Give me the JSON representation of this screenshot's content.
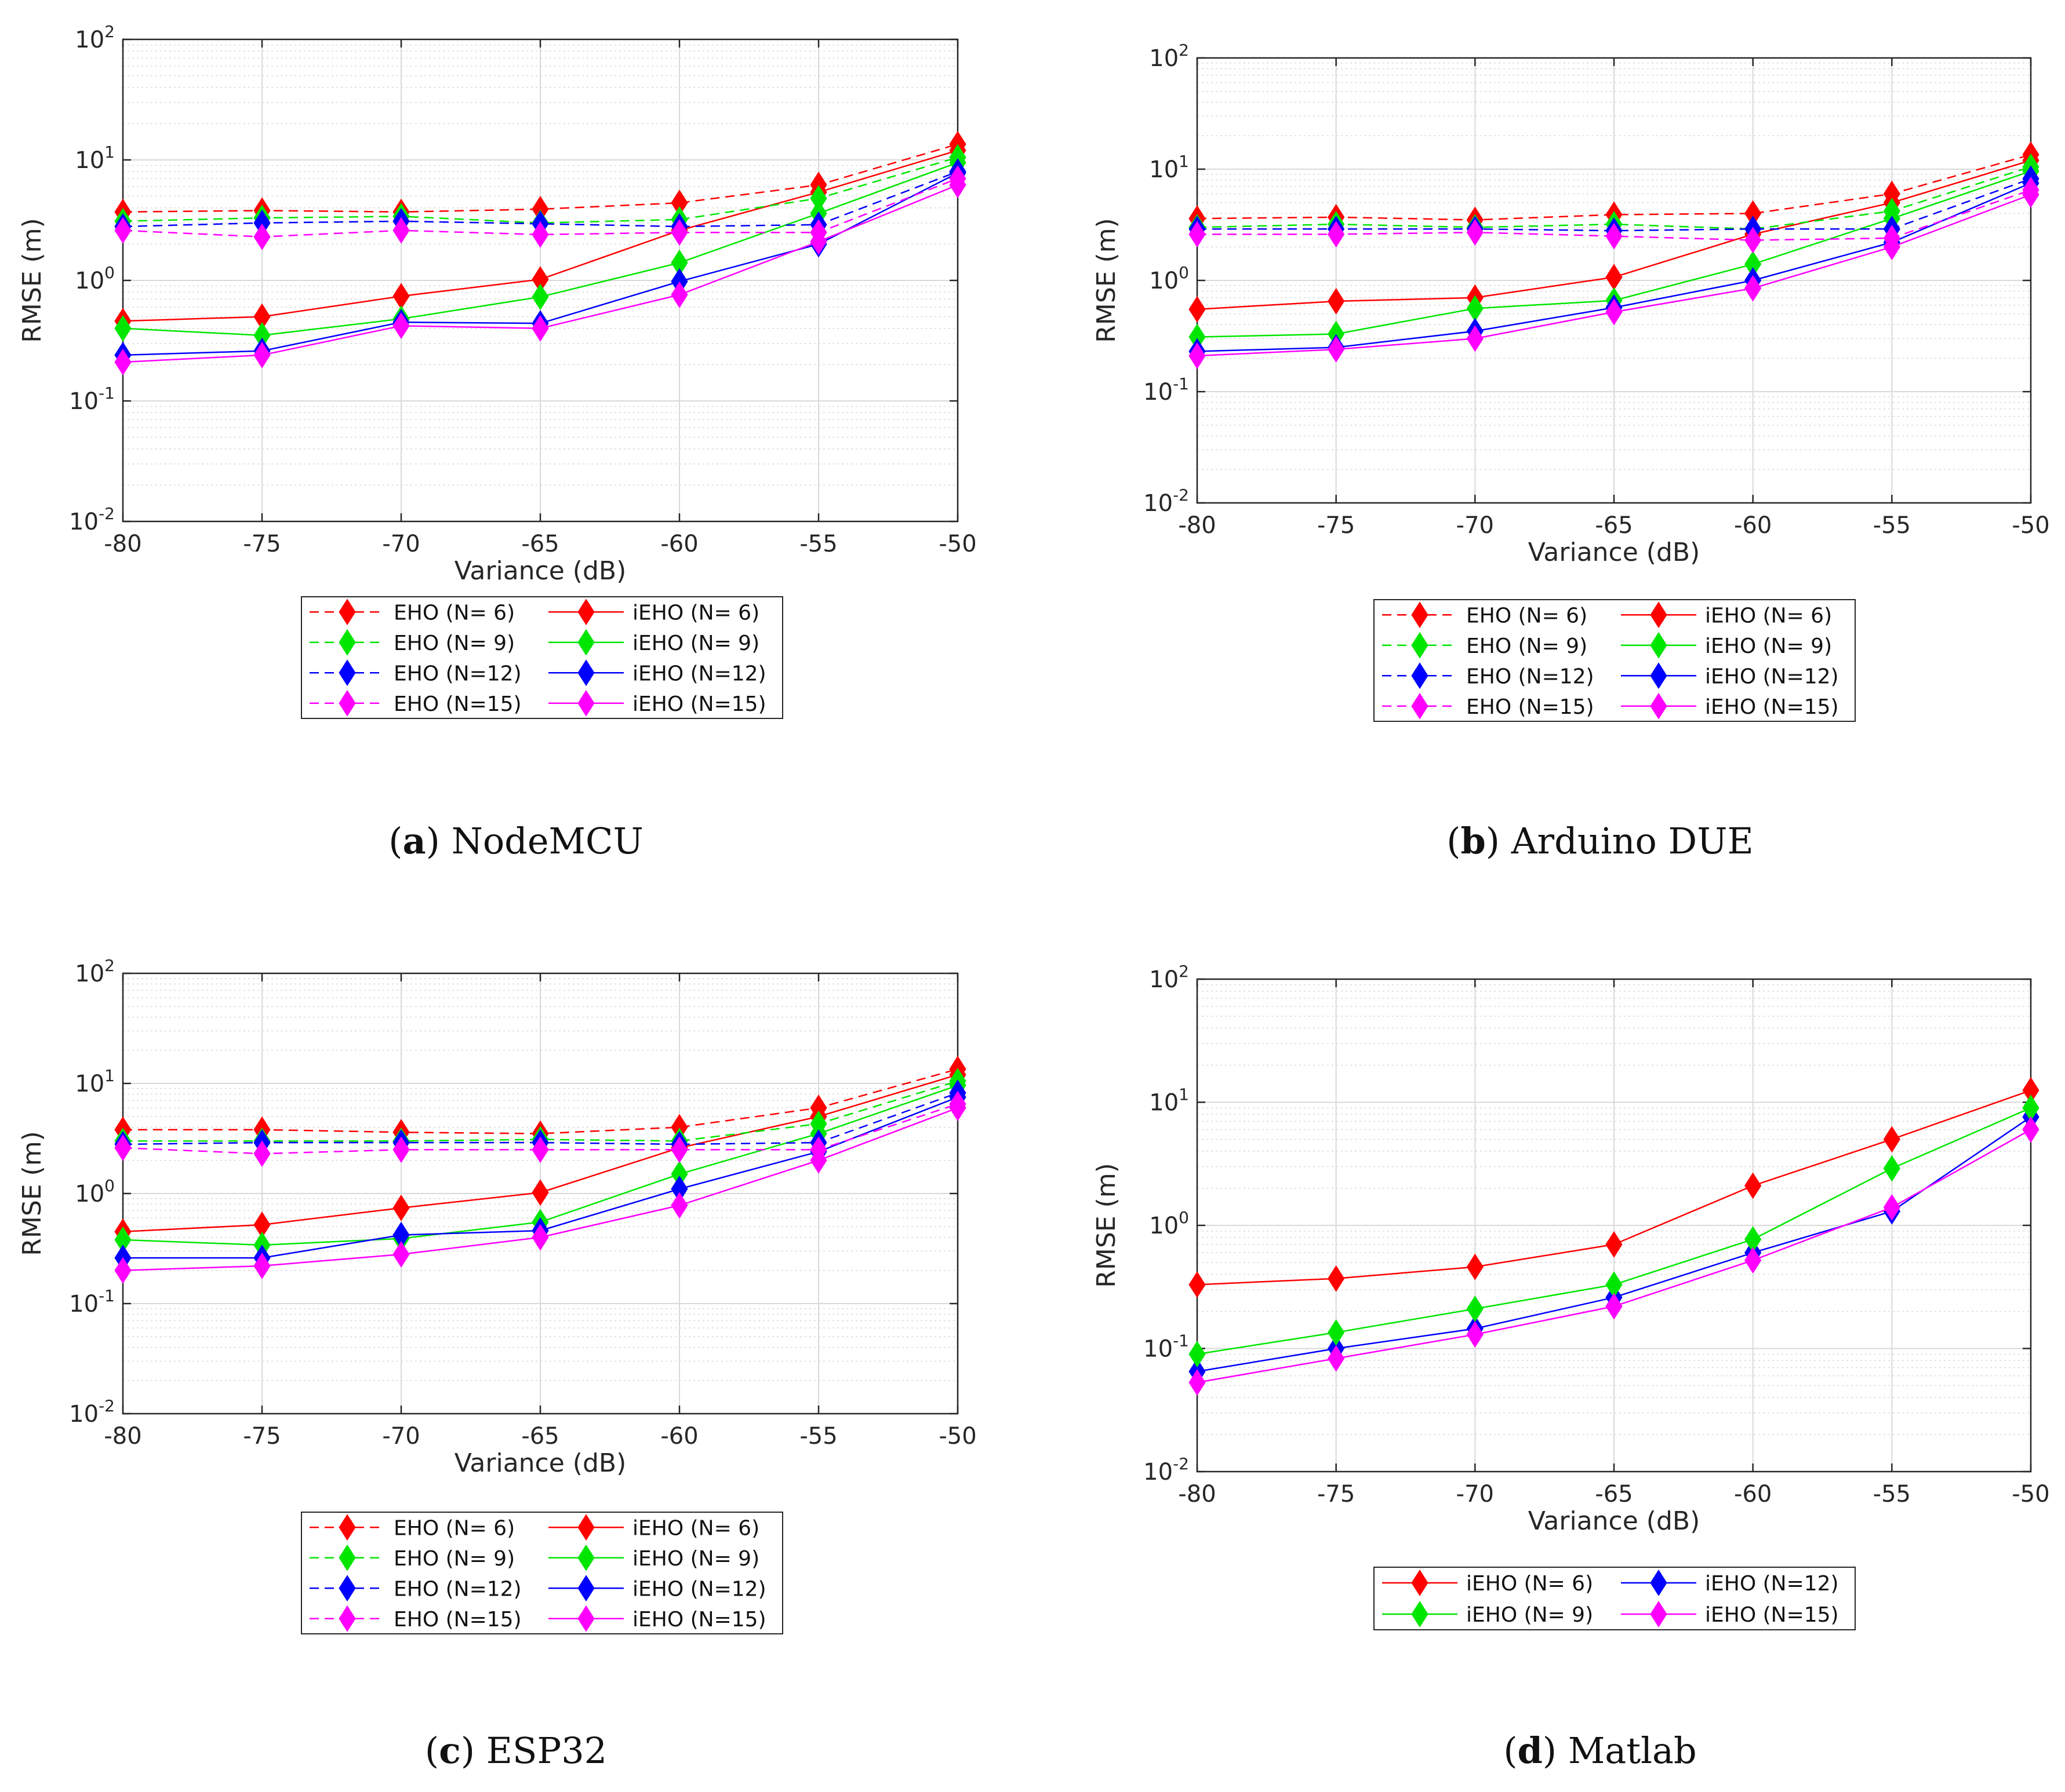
{
  "figure": {
    "captions": [
      {
        "letter": "a",
        "text": "NodeMCU"
      },
      {
        "letter": "b",
        "text": "Arduino DUE"
      },
      {
        "letter": "c",
        "text": "ESP32"
      },
      {
        "letter": "d",
        "text": "Matlab"
      }
    ]
  },
  "colors": {
    "N6": "#ff0000",
    "N9": "#00e600",
    "N12": "#0000ff",
    "N15": "#ff00ff",
    "grid": "#d9d9d9",
    "axis": "#262626"
  },
  "chart_data": [
    {
      "type": "line",
      "panel": "a",
      "title": "",
      "xlabel": "Variance (dB)",
      "ylabel": "RMSE (m)",
      "xlim": [
        -80,
        -50
      ],
      "ylim": [
        0.01,
        100
      ],
      "yscale": "log",
      "grid": true,
      "xticks": [
        "-80",
        "-75",
        "-70",
        "-65",
        "-60",
        "-55",
        "-50"
      ],
      "yticks": [
        {
          "base": "10",
          "exp": "-2"
        },
        {
          "base": "10",
          "exp": "-1"
        },
        {
          "base": "10",
          "exp": "0"
        },
        {
          "base": "10",
          "exp": "1"
        },
        {
          "base": "10",
          "exp": "2"
        }
      ],
      "legend_position": "below",
      "x": [
        -80,
        -75,
        -70,
        -65,
        -60,
        -55,
        -50
      ],
      "series": [
        {
          "name": "EHO (N= 6)",
          "key": "N6",
          "style": "dashed",
          "values": [
            3.7,
            3.8,
            3.7,
            3.9,
            4.4,
            6.2,
            13.5
          ]
        },
        {
          "name": "iEHO (N= 6)",
          "key": "N6",
          "style": "solid",
          "values": [
            0.46,
            0.5,
            0.74,
            1.02,
            2.6,
            5.4,
            12
          ]
        },
        {
          "name": "EHO (N= 9)",
          "key": "N9",
          "style": "dashed",
          "values": [
            3.1,
            3.3,
            3.4,
            3.0,
            3.2,
            4.8,
            10.5
          ]
        },
        {
          "name": "iEHO (N= 9)",
          "key": "N9",
          "style": "solid",
          "values": [
            0.4,
            0.35,
            0.48,
            0.73,
            1.4,
            3.6,
            9.5
          ]
        },
        {
          "name": "EHO (N=12)",
          "key": "N12",
          "style": "dashed",
          "values": [
            2.8,
            3.0,
            3.1,
            2.95,
            2.8,
            2.9,
            8.0
          ]
        },
        {
          "name": "iEHO (N=12)",
          "key": "N12",
          "style": "solid",
          "values": [
            0.24,
            0.26,
            0.45,
            0.44,
            0.98,
            2.0,
            7.8
          ]
        },
        {
          "name": "EHO (N=15)",
          "key": "N15",
          "style": "dashed",
          "values": [
            2.6,
            2.3,
            2.6,
            2.4,
            2.5,
            2.5,
            7.0
          ]
        },
        {
          "name": "iEHO (N=15)",
          "key": "N15",
          "style": "solid",
          "values": [
            0.21,
            0.24,
            0.42,
            0.4,
            0.76,
            2.1,
            6.2
          ]
        }
      ]
    },
    {
      "type": "line",
      "panel": "b",
      "title": "",
      "xlabel": "Variance (dB)",
      "ylabel": "RMSE (m)",
      "xlim": [
        -80,
        -50
      ],
      "ylim": [
        0.01,
        100
      ],
      "yscale": "log",
      "grid": true,
      "xticks": [
        "-80",
        "-75",
        "-70",
        "-65",
        "-60",
        "-55",
        "-50"
      ],
      "yticks": [
        {
          "base": "10",
          "exp": "-2"
        },
        {
          "base": "10",
          "exp": "-1"
        },
        {
          "base": "10",
          "exp": "0"
        },
        {
          "base": "10",
          "exp": "1"
        },
        {
          "base": "10",
          "exp": "2"
        }
      ],
      "legend_position": "below",
      "x": [
        -80,
        -75,
        -70,
        -65,
        -60,
        -55,
        -50
      ],
      "series": [
        {
          "name": "EHO (N= 6)",
          "key": "N6",
          "style": "dashed",
          "values": [
            3.6,
            3.7,
            3.5,
            3.9,
            4.0,
            6.0,
            13.5
          ]
        },
        {
          "name": "iEHO (N= 6)",
          "key": "N6",
          "style": "solid",
          "values": [
            0.55,
            0.65,
            0.7,
            1.07,
            2.6,
            5.0,
            12
          ]
        },
        {
          "name": "EHO (N= 9)",
          "key": "N9",
          "style": "dashed",
          "values": [
            3.0,
            3.2,
            3.0,
            3.2,
            2.9,
            4.2,
            10.5
          ]
        },
        {
          "name": "iEHO (N= 9)",
          "key": "N9",
          "style": "solid",
          "values": [
            0.31,
            0.33,
            0.56,
            0.66,
            1.4,
            3.6,
            9.6
          ]
        },
        {
          "name": "EHO (N=12)",
          "key": "N12",
          "style": "dashed",
          "values": [
            2.9,
            2.9,
            2.9,
            2.8,
            2.9,
            2.9,
            8.2
          ]
        },
        {
          "name": "iEHO (N=12)",
          "key": "N12",
          "style": "solid",
          "values": [
            0.23,
            0.25,
            0.35,
            0.57,
            1.0,
            2.2,
            7.5
          ]
        },
        {
          "name": "EHO (N=15)",
          "key": "N15",
          "style": "dashed",
          "values": [
            2.6,
            2.6,
            2.7,
            2.5,
            2.3,
            2.4,
            6.5
          ]
        },
        {
          "name": "iEHO (N=15)",
          "key": "N15",
          "style": "solid",
          "values": [
            0.21,
            0.24,
            0.3,
            0.52,
            0.85,
            2.0,
            5.9
          ]
        }
      ]
    },
    {
      "type": "line",
      "panel": "c",
      "title": "",
      "xlabel": "Variance (dB)",
      "ylabel": "RMSE (m)",
      "xlim": [
        -80,
        -50
      ],
      "ylim": [
        0.01,
        100
      ],
      "yscale": "log",
      "grid": true,
      "xticks": [
        "-80",
        "-75",
        "-70",
        "-65",
        "-60",
        "-55",
        "-50"
      ],
      "yticks": [
        {
          "base": "10",
          "exp": "-2"
        },
        {
          "base": "10",
          "exp": "-1"
        },
        {
          "base": "10",
          "exp": "0"
        },
        {
          "base": "10",
          "exp": "1"
        },
        {
          "base": "10",
          "exp": "2"
        }
      ],
      "legend_position": "below",
      "x": [
        -80,
        -75,
        -70,
        -65,
        -60,
        -55,
        -50
      ],
      "series": [
        {
          "name": "EHO (N= 6)",
          "key": "N6",
          "style": "dashed",
          "values": [
            3.8,
            3.8,
            3.6,
            3.5,
            4.0,
            6.0,
            13.5
          ]
        },
        {
          "name": "iEHO (N= 6)",
          "key": "N6",
          "style": "solid",
          "values": [
            0.45,
            0.52,
            0.74,
            1.02,
            2.6,
            5.0,
            12
          ]
        },
        {
          "name": "EHO (N= 9)",
          "key": "N9",
          "style": "dashed",
          "values": [
            3.0,
            3.0,
            3.0,
            3.1,
            3.0,
            4.3,
            10.5
          ]
        },
        {
          "name": "iEHO (N= 9)",
          "key": "N9",
          "style": "solid",
          "values": [
            0.38,
            0.34,
            0.39,
            0.55,
            1.5,
            3.5,
            9.6
          ]
        },
        {
          "name": "EHO (N=12)",
          "key": "N12",
          "style": "dashed",
          "values": [
            2.8,
            2.9,
            2.9,
            2.9,
            2.8,
            2.9,
            8.2
          ]
        },
        {
          "name": "iEHO (N=12)",
          "key": "N12",
          "style": "solid",
          "values": [
            0.26,
            0.26,
            0.42,
            0.46,
            1.1,
            2.4,
            7.5
          ]
        },
        {
          "name": "EHO (N=15)",
          "key": "N15",
          "style": "dashed",
          "values": [
            2.6,
            2.3,
            2.5,
            2.5,
            2.5,
            2.5,
            6.5
          ]
        },
        {
          "name": "iEHO (N=15)",
          "key": "N15",
          "style": "solid",
          "values": [
            0.2,
            0.22,
            0.28,
            0.4,
            0.78,
            2.0,
            6.0
          ]
        }
      ]
    },
    {
      "type": "line",
      "panel": "d",
      "title": "",
      "xlabel": "Variance (dB)",
      "ylabel": "RMSE (m)",
      "xlim": [
        -80,
        -50
      ],
      "ylim": [
        0.01,
        100
      ],
      "yscale": "log",
      "grid": true,
      "xticks": [
        "-80",
        "-75",
        "-70",
        "-65",
        "-60",
        "-55",
        "-50"
      ],
      "yticks": [
        {
          "base": "10",
          "exp": "-2"
        },
        {
          "base": "10",
          "exp": "-1"
        },
        {
          "base": "10",
          "exp": "0"
        },
        {
          "base": "10",
          "exp": "1"
        },
        {
          "base": "10",
          "exp": "2"
        }
      ],
      "legend_position": "below",
      "x": [
        -80,
        -75,
        -70,
        -65,
        -60,
        -55,
        -50
      ],
      "series": [
        {
          "name": "iEHO (N= 6)",
          "key": "N6",
          "style": "solid",
          "values": [
            0.33,
            0.37,
            0.46,
            0.7,
            2.1,
            5.0,
            12.5
          ]
        },
        {
          "name": "iEHO (N=12)",
          "key": "N12",
          "style": "solid",
          "values": [
            0.065,
            0.1,
            0.145,
            0.26,
            0.6,
            1.3,
            7.6
          ]
        },
        {
          "name": "iEHO (N= 9)",
          "key": "N9",
          "style": "solid",
          "values": [
            0.09,
            0.135,
            0.21,
            0.33,
            0.77,
            2.9,
            9.0
          ]
        },
        {
          "name": "iEHO (N=15)",
          "key": "N15",
          "style": "solid",
          "values": [
            0.053,
            0.083,
            0.13,
            0.22,
            0.52,
            1.4,
            6.0
          ]
        }
      ]
    }
  ]
}
